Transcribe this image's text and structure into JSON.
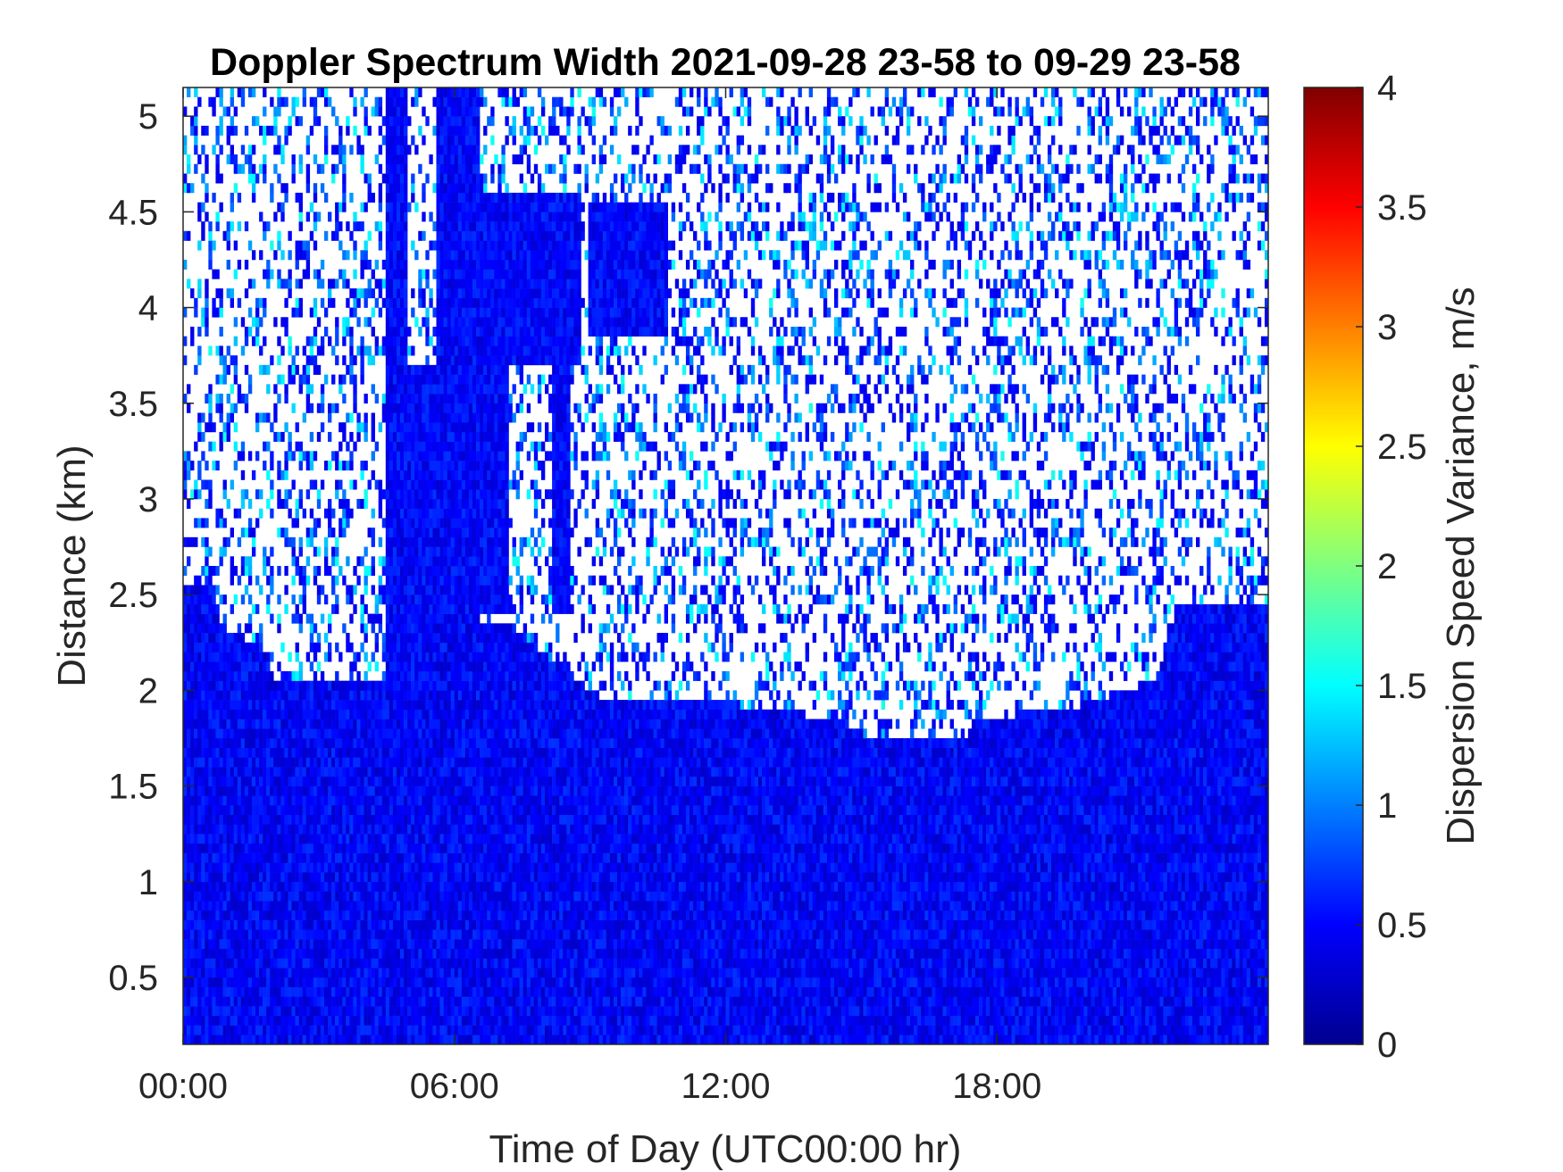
{
  "chart_data": {
    "type": "heatmap",
    "title": "Doppler Spectrum Width 2021-09-28 23-58 to 09-29 23-58",
    "xlabel": "Time of Day (UTC00:00 hr)",
    "ylabel": "Distance (km)",
    "x_ticks": [
      "00:00",
      "06:00",
      "12:00",
      "18:00"
    ],
    "x_tick_values_hr": [
      0,
      6,
      12,
      18
    ],
    "xlim_hr": [
      0,
      24
    ],
    "y_ticks": [
      "0.5",
      "1",
      "1.5",
      "2",
      "2.5",
      "3",
      "3.5",
      "4",
      "4.5",
      "5"
    ],
    "y_tick_values_km": [
      0.5,
      1,
      1.5,
      2,
      2.5,
      3,
      3.5,
      4,
      4.5,
      5
    ],
    "ylim_km": [
      0.15,
      5.15
    ],
    "grid": false,
    "colorbar": {
      "label": "Dispersion Speed Variance, m/s",
      "colormap": "jet",
      "ticks": [
        "0",
        "0.5",
        "1",
        "1.5",
        "2",
        "2.5",
        "3",
        "3.5",
        "4"
      ],
      "tick_values": [
        0,
        0.5,
        1,
        1.5,
        2,
        2.5,
        3,
        3.5,
        4
      ],
      "clim": [
        0,
        4
      ],
      "colors": [
        "#00008f",
        "#0000ff",
        "#00ffff",
        "#ffff00",
        "#ff0000",
        "#800000"
      ]
    },
    "background": "#ffffff",
    "boundary_layer_top_km": [
      {
        "t": 0.0,
        "h": 2.55
      },
      {
        "t": 0.7,
        "h": 2.55
      },
      {
        "t": 0.8,
        "h": 2.3
      },
      {
        "t": 1.7,
        "h": 2.25
      },
      {
        "t": 2.0,
        "h": 2.05
      },
      {
        "t": 4.5,
        "h": 2.05
      },
      {
        "t": 5.5,
        "h": 2.35
      },
      {
        "t": 6.5,
        "h": 2.35
      },
      {
        "t": 7.2,
        "h": 2.35
      },
      {
        "t": 9.3,
        "h": 1.95
      },
      {
        "t": 11.5,
        "h": 1.95
      },
      {
        "t": 14.5,
        "h": 1.85
      },
      {
        "t": 15.2,
        "h": 1.75
      },
      {
        "t": 17.3,
        "h": 1.75
      },
      {
        "t": 17.5,
        "h": 1.85
      },
      {
        "t": 19.5,
        "h": 1.9
      },
      {
        "t": 21.5,
        "h": 2.05
      },
      {
        "t": 22.0,
        "h": 2.45
      },
      {
        "t": 24.0,
        "h": 2.45
      }
    ],
    "cloud_regions": [
      {
        "t0": 4.45,
        "t1": 4.95,
        "h0": 2.0,
        "h1": 5.15
      },
      {
        "t0": 4.95,
        "t1": 5.6,
        "h0": 2.0,
        "h1": 3.7
      },
      {
        "t0": 5.6,
        "t1": 6.6,
        "h0": 2.0,
        "h1": 5.15
      },
      {
        "t0": 6.6,
        "t1": 7.2,
        "h0": 2.4,
        "h1": 4.6
      },
      {
        "t0": 7.2,
        "t1": 8.8,
        "h0": 3.7,
        "h1": 4.6
      },
      {
        "t0": 8.2,
        "t1": 8.6,
        "h0": 2.4,
        "h1": 3.7
      },
      {
        "t0": 9.0,
        "t1": 10.7,
        "h0": 3.85,
        "h1": 4.55
      }
    ],
    "value_ranges": {
      "boundary_layer": [
        0.25,
        0.7
      ],
      "cloud": [
        0.3,
        0.7
      ],
      "speckle": [
        0.4,
        1.6
      ]
    }
  }
}
